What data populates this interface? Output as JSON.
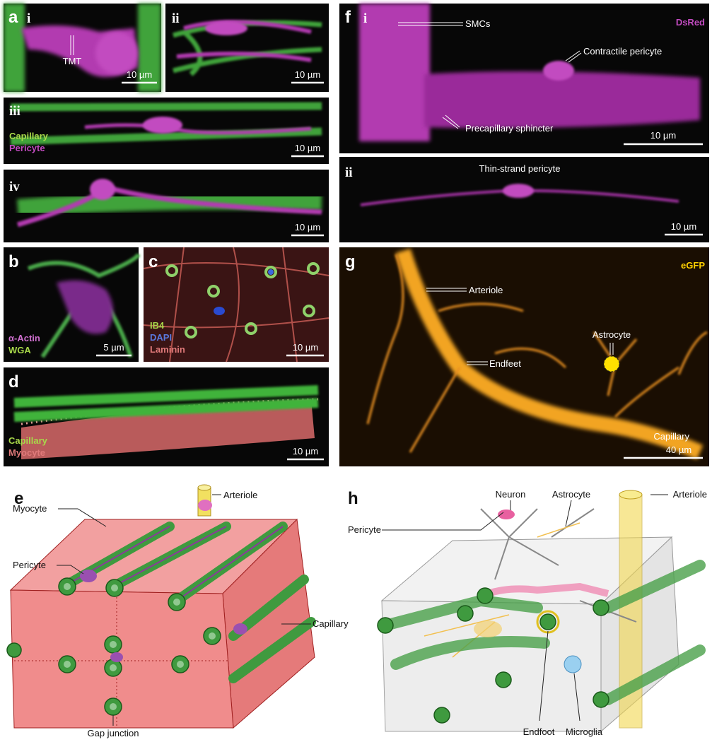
{
  "panel_a": {
    "letter": "a",
    "sub": [
      {
        "numeral": "i",
        "label": "TMT",
        "scale": "10 µm"
      },
      {
        "numeral": "ii",
        "scale": "10 µm"
      },
      {
        "numeral": "iii",
        "legend": [
          "Capillary",
          "Pericyte"
        ],
        "scale": "10 µm"
      },
      {
        "numeral": "iv",
        "scale": "10 µm"
      }
    ]
  },
  "panel_b": {
    "letter": "b",
    "legend": [
      "α-Actin",
      "WGA"
    ],
    "scale": "5 µm"
  },
  "panel_c": {
    "letter": "c",
    "legend": [
      "IB4",
      "DAPI",
      "Laminin"
    ],
    "scale": "10 µm"
  },
  "panel_d": {
    "letter": "d",
    "legend": [
      "Capillary",
      "Myocyte"
    ],
    "scale": "10 µm"
  },
  "panel_f": {
    "letter": "f",
    "sub": [
      {
        "numeral": "i",
        "channel": "DsRed",
        "labels": [
          "SMCs",
          "Contractile pericyte",
          "Precapillary sphincter"
        ],
        "scale": "10 µm"
      },
      {
        "numeral": "ii",
        "labels": [
          "Thin-strand pericyte"
        ],
        "scale": "10 µm"
      }
    ]
  },
  "panel_g": {
    "letter": "g",
    "channel": "eGFP",
    "labels": [
      "Arteriole",
      "Astrocyte",
      "Endfeet",
      "Capillary"
    ],
    "scale": "40 µm"
  },
  "panel_e": {
    "letter": "e",
    "labels": [
      "Arteriole",
      "Myocyte",
      "Pericyte",
      "Capillary",
      "Gap junction"
    ]
  },
  "panel_h": {
    "letter": "h",
    "labels": [
      "Neuron",
      "Astrocyte",
      "Arteriole",
      "Pericyte",
      "Endfoot",
      "Microglia"
    ]
  }
}
